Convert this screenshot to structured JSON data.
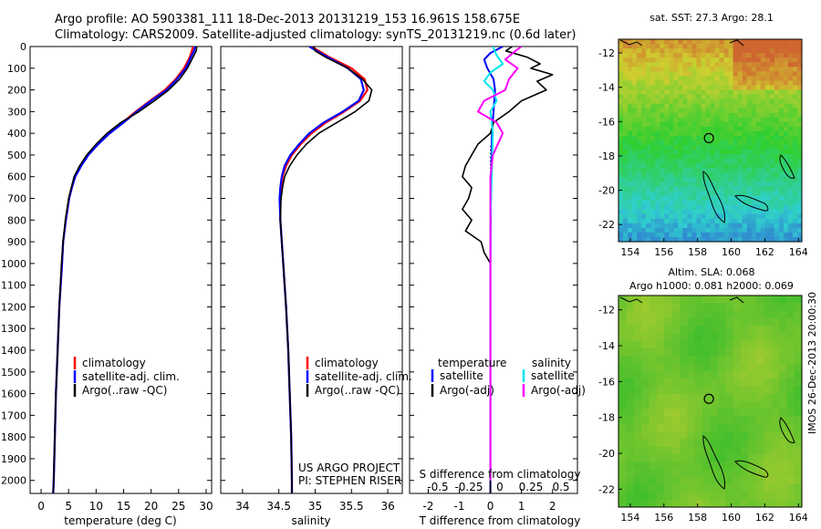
{
  "header": {
    "line1": "Argo profile: AO 5903381_111 18-Dec-2013 20131219_153 16.961S 158.675E",
    "line2": "Climatology: CARS2009. Satellite-adjusted climatology: synTS_20131219.nc (0.6d later)"
  },
  "colors": {
    "climatology": "#ff0000",
    "satellite": "#0000ff",
    "argo": "#000000",
    "sal_satellite": "#00e5ee",
    "sal_argo": "#ff00ff",
    "sst_warm": "#e08a2c",
    "sst_cool": "#2f9fe6",
    "sla_bg": "#45b84a"
  },
  "chart_data": [
    {
      "type": "line",
      "name": "temperature-profile",
      "xlabel": "temperature (deg C)",
      "ylabel": "",
      "xlim": [
        -2,
        31
      ],
      "ylim": [
        2060,
        0
      ],
      "xticks": [
        "0",
        "5",
        "10",
        "15",
        "20",
        "25",
        "30"
      ],
      "xtick_values": [
        0,
        5,
        10,
        15,
        20,
        25,
        30
      ],
      "yticks": [
        "0",
        "100",
        "200",
        "300",
        "400",
        "500",
        "600",
        "700",
        "800",
        "900",
        "1000",
        "1100",
        "1200",
        "1300",
        "1400",
        "1500",
        "1600",
        "1700",
        "1800",
        "1900",
        "2000"
      ],
      "ytick_values": [
        0,
        100,
        200,
        300,
        400,
        500,
        600,
        700,
        800,
        900,
        1000,
        1100,
        1200,
        1300,
        1400,
        1500,
        1600,
        1700,
        1800,
        1900,
        2000
      ],
      "legend": [
        "climatology",
        "satellite-adj. clim.",
        "Argo(..raw -QC)"
      ],
      "series": [
        {
          "name": "climatology",
          "depth": [
            0,
            20,
            50,
            100,
            150,
            200,
            250,
            300,
            350,
            400,
            450,
            500,
            550,
            600,
            650,
            700,
            800,
            900,
            1000,
            1200,
            1400,
            1600,
            1800,
            2000,
            2060
          ],
          "values": [
            27.6,
            27.4,
            27.0,
            26.0,
            24.5,
            22.5,
            19.8,
            17.2,
            14.8,
            12.3,
            10.3,
            8.5,
            7.2,
            6.2,
            5.6,
            5.1,
            4.5,
            4.0,
            3.8,
            3.3,
            3.0,
            2.7,
            2.5,
            2.3,
            2.2
          ]
        },
        {
          "name": "satellite-adj. clim.",
          "depth": [
            0,
            20,
            50,
            100,
            150,
            200,
            250,
            300,
            350,
            400,
            450,
            500,
            550,
            600,
            650,
            700,
            800,
            900,
            1000,
            1200,
            1400,
            1600,
            1800,
            2000,
            2060
          ],
          "values": [
            28.0,
            27.8,
            27.2,
            26.3,
            24.7,
            22.8,
            20.0,
            17.4,
            15.0,
            12.5,
            10.4,
            8.6,
            7.3,
            6.2,
            5.6,
            5.1,
            4.5,
            4.0,
            3.8,
            3.3,
            3.0,
            2.7,
            2.5,
            2.3,
            2.2
          ]
        },
        {
          "name": "Argo(..raw -QC)",
          "depth": [
            0,
            20,
            50,
            100,
            150,
            200,
            250,
            300,
            350,
            400,
            450,
            500,
            550,
            600,
            650,
            700,
            800,
            900,
            1000,
            1200,
            1400,
            1600,
            1800,
            2000,
            2060
          ],
          "values": [
            28.3,
            28.2,
            27.6,
            26.6,
            25.2,
            23.2,
            20.6,
            17.8,
            14.5,
            12.0,
            10.0,
            8.3,
            7.0,
            6.0,
            5.5,
            5.0,
            4.4,
            4.0,
            3.7,
            3.3,
            3.0,
            2.7,
            2.5,
            2.3,
            2.2
          ]
        }
      ]
    },
    {
      "type": "line",
      "name": "salinity-profile",
      "xlabel": "salinity",
      "xlim": [
        33.7,
        36.2
      ],
      "ylim": [
        2060,
        0
      ],
      "xticks": [
        "34",
        "34.5",
        "35",
        "35.5",
        "36"
      ],
      "xtick_values": [
        34,
        34.5,
        35,
        35.5,
        36
      ],
      "legend": [
        "climatology",
        "satellite-adj. clim.",
        "Argo(..raw -QC)"
      ],
      "annotation": [
        "US ARGO PROJECT",
        "PI: STEPHEN RISER"
      ],
      "series": [
        {
          "name": "climatology",
          "depth": [
            0,
            20,
            50,
            100,
            150,
            200,
            250,
            300,
            350,
            400,
            450,
            500,
            550,
            600,
            650,
            700,
            800,
            900,
            1000,
            1200,
            1400,
            1600,
            1800,
            2000,
            2060
          ],
          "values": [
            34.95,
            35.05,
            35.2,
            35.5,
            35.68,
            35.72,
            35.62,
            35.4,
            35.15,
            34.95,
            34.8,
            34.68,
            34.6,
            34.55,
            34.53,
            34.52,
            34.52,
            34.54,
            34.56,
            34.6,
            34.63,
            34.65,
            34.67,
            34.68,
            34.68
          ]
        },
        {
          "name": "satellite-adj. clim.",
          "depth": [
            0,
            20,
            50,
            100,
            150,
            200,
            250,
            300,
            350,
            400,
            450,
            500,
            550,
            600,
            650,
            700,
            800,
            900,
            1000,
            1200,
            1400,
            1600,
            1800,
            2000,
            2060
          ],
          "values": [
            34.92,
            35.02,
            35.18,
            35.45,
            35.63,
            35.67,
            35.6,
            35.38,
            35.12,
            34.92,
            34.78,
            34.66,
            34.58,
            34.54,
            34.52,
            34.51,
            34.52,
            34.54,
            34.56,
            34.6,
            34.63,
            34.65,
            34.67,
            34.68,
            34.68
          ]
        },
        {
          "name": "Argo(..raw -QC)",
          "depth": [
            0,
            20,
            50,
            100,
            150,
            200,
            250,
            300,
            350,
            400,
            450,
            500,
            550,
            600,
            650,
            700,
            800,
            900,
            1000,
            1200,
            1400,
            1600,
            1800,
            2000,
            2060
          ],
          "values": [
            34.98,
            35.0,
            35.15,
            35.45,
            35.65,
            35.78,
            35.74,
            35.55,
            35.3,
            35.05,
            34.88,
            34.75,
            34.65,
            34.58,
            34.55,
            34.53,
            34.52,
            34.54,
            34.56,
            34.6,
            34.63,
            34.65,
            34.67,
            34.68,
            34.68
          ]
        }
      ]
    },
    {
      "type": "line",
      "name": "difference-profile",
      "xlabel": "T difference from climatology",
      "xlabel_top": "S difference from climatology",
      "xlim": [
        -2.6,
        2.8
      ],
      "ylim": [
        2060,
        0
      ],
      "xticks": [
        "-2",
        "-1",
        "0",
        "1",
        "2"
      ],
      "xtick_values": [
        -2,
        -1,
        0,
        1,
        2
      ],
      "sticks": [
        "-0.5",
        "-0.25",
        "0",
        "0.25",
        "0.5"
      ],
      "stick_values": [
        -0.5,
        -0.25,
        0,
        0.25,
        0.5
      ],
      "legend_temperature_title": "temperature",
      "legend_salinity_title": "salinity",
      "legend": [
        "satellite",
        "Argo(-adj)",
        "satellite",
        "Argo(-adj)"
      ],
      "series": [
        {
          "name": "T satellite",
          "depth": [
            0,
            30,
            60,
            100,
            150,
            200,
            300,
            400,
            600,
            800,
            1000,
            1500,
            2000,
            2060
          ],
          "values": [
            0.4,
            0.0,
            -0.2,
            -0.1,
            0.1,
            0.15,
            0.1,
            0.05,
            0.02,
            0.01,
            0.0,
            0.0,
            0.0,
            0.0
          ]
        },
        {
          "name": "T Argo(-adj)",
          "depth": [
            0,
            20,
            50,
            80,
            100,
            130,
            160,
            200,
            250,
            300,
            350,
            400,
            450,
            500,
            550,
            600,
            650,
            700,
            750,
            800,
            850,
            900,
            950,
            1000,
            1200,
            1500,
            2000,
            2060
          ],
          "values": [
            0.7,
            0.5,
            1.2,
            1.6,
            1.3,
            2.0,
            1.5,
            1.8,
            1.0,
            0.6,
            0.1,
            0.0,
            -0.4,
            -0.6,
            -0.8,
            -0.9,
            -0.6,
            -0.7,
            -0.9,
            -0.6,
            -0.8,
            -0.3,
            -0.2,
            0.0,
            0.0,
            0.0,
            0.0,
            0.0
          ]
        },
        {
          "name": "S satellite",
          "depth": [
            0,
            40,
            80,
            120,
            160,
            200,
            250,
            300,
            400,
            600,
            800,
            1000,
            1500,
            2000
          ],
          "values": [
            0.02,
            0.05,
            0.1,
            0.0,
            -0.05,
            0.02,
            0.05,
            0.0,
            0.02,
            0.01,
            0.0,
            0.0,
            0.0,
            0.0
          ]
        },
        {
          "name": "S Argo(-adj)",
          "depth": [
            0,
            30,
            60,
            100,
            150,
            200,
            250,
            300,
            350,
            400,
            500,
            600,
            800,
            1000,
            1500,
            2000
          ],
          "values": [
            0.25,
            0.18,
            0.12,
            0.22,
            0.15,
            0.12,
            -0.05,
            -0.1,
            0.05,
            0.1,
            0.02,
            0.0,
            0.0,
            0.0,
            0.0,
            0.0
          ]
        }
      ]
    },
    {
      "type": "heatmap",
      "name": "sst-map",
      "title": "sat. SST: 27.3 Argo: 28.1",
      "xticks": [
        "154",
        "156",
        "158",
        "160",
        "162",
        "164"
      ],
      "xtick_values": [
        154,
        156,
        158,
        160,
        162,
        164
      ],
      "yticks": [
        "-12",
        "-14",
        "-16",
        "-18",
        "-20",
        "-22"
      ],
      "ytick_values": [
        -12,
        -14,
        -16,
        -18,
        -20,
        -22
      ],
      "xlim": [
        153.3,
        164.2
      ],
      "ylim": [
        -23,
        -11.2
      ],
      "argo_position": {
        "lon": 158.675,
        "lat": -16.961
      }
    },
    {
      "type": "heatmap",
      "name": "sla-map",
      "title_line1": "Altim. SLA: 0.068",
      "title_line2": "Argo h1000: 0.081 h2000: 0.069",
      "xticks": [
        "154",
        "156",
        "158",
        "160",
        "162",
        "164"
      ],
      "xtick_values": [
        154,
        156,
        158,
        160,
        162,
        164
      ],
      "yticks": [
        "-12",
        "-14",
        "-16",
        "-18",
        "-20",
        "-22"
      ],
      "ytick_values": [
        -12,
        -14,
        -16,
        -18,
        -20,
        -22
      ],
      "xlim": [
        153.3,
        164.2
      ],
      "ylim": [
        -23,
        -11.2
      ],
      "argo_position": {
        "lon": 158.675,
        "lat": -16.961
      }
    }
  ],
  "side_label": "IMOS 26-Dec-2013 20:00:30"
}
